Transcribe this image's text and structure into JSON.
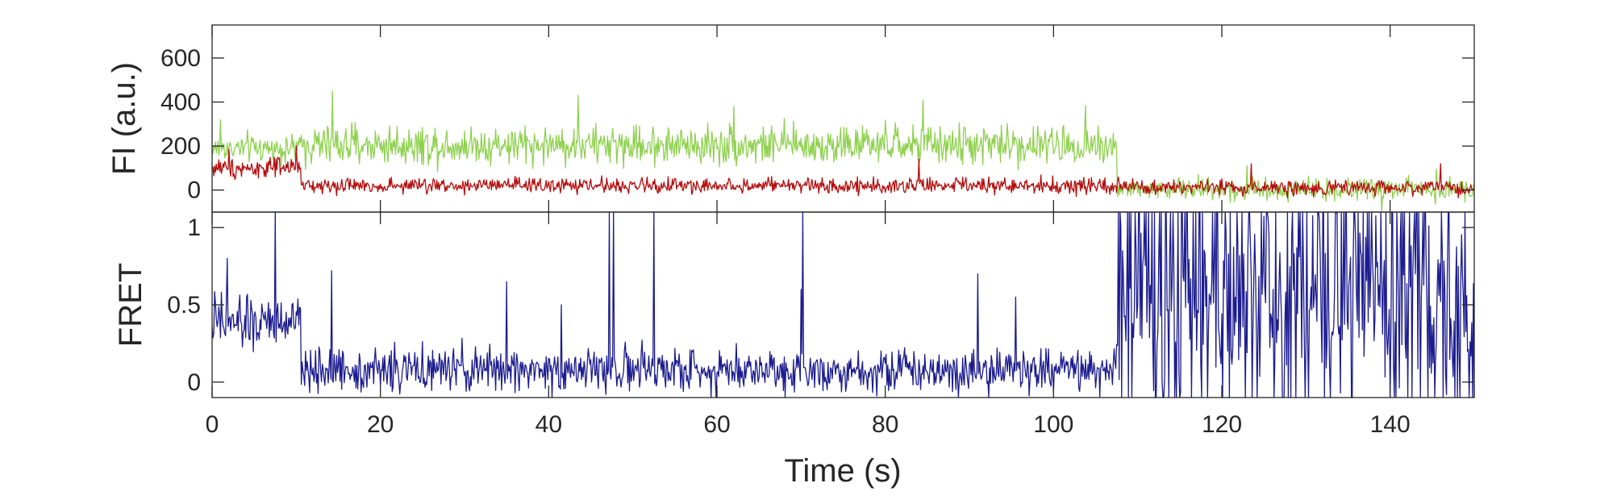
{
  "chart_data": [
    {
      "type": "line",
      "panel": "fluorescence",
      "ylabel": "FI (a.u.)",
      "xlabel": "",
      "xlim": [
        0,
        150
      ],
      "ylim": [
        -100,
        750
      ],
      "yticks": [
        0,
        200,
        400,
        600
      ],
      "ytick_labels": [
        "0",
        "200",
        "400",
        "600"
      ],
      "grid": false,
      "series": [
        {
          "color": "#8fd14f",
          "segments": [
            {
              "x0": 0,
              "x1": 10.5,
              "mean": 190,
              "noise": 55
            },
            {
              "x0": 10.5,
              "x1": 107.5,
              "mean": 205,
              "noise": 75
            },
            {
              "x0": 107.5,
              "x1": 150,
              "mean": 5,
              "noise": 45
            }
          ],
          "points": [
            {
              "x": 1.0,
              "y": 320
            },
            {
              "x": 14.3,
              "y": 450
            },
            {
              "x": 43.5,
              "y": 430
            },
            {
              "x": 62.0,
              "y": 380
            },
            {
              "x": 84.5,
              "y": 410
            },
            {
              "x": 103.8,
              "y": 385
            },
            {
              "x": 123.0,
              "y": 110
            },
            {
              "x": 145.5,
              "y": 95
            },
            {
              "x": 139.0,
              "y": -95
            }
          ]
        },
        {
          "color": "#b50d0d",
          "segments": [
            {
              "x0": 0,
              "x1": 10.5,
              "mean": 100,
              "noise": 38
            },
            {
              "x0": 10.5,
              "x1": 107.5,
              "mean": 20,
              "noise": 30
            },
            {
              "x0": 107.5,
              "x1": 150,
              "mean": 10,
              "noise": 30
            }
          ],
          "points": [
            {
              "x": 2.0,
              "y": 185
            },
            {
              "x": 10.0,
              "y": 200
            },
            {
              "x": 84.0,
              "y": 140
            },
            {
              "x": 123.5,
              "y": 120
            },
            {
              "x": 146.0,
              "y": 120
            }
          ]
        }
      ]
    },
    {
      "type": "line",
      "panel": "fret",
      "ylabel": "FRET",
      "xlabel": "Time (s)",
      "xlim": [
        0,
        150
      ],
      "ylim": [
        -0.1,
        1.1
      ],
      "yticks": [
        0,
        0.5,
        1
      ],
      "ytick_labels": [
        "0",
        "0.5",
        "1"
      ],
      "xticks": [
        0,
        20,
        40,
        60,
        80,
        100,
        120,
        140
      ],
      "xtick_labels": [
        "0",
        "20",
        "40",
        "60",
        "80",
        "100",
        "120",
        "140"
      ],
      "grid": false,
      "series": [
        {
          "color": "#1c1c8f",
          "segments": [
            {
              "x0": 0,
              "x1": 10.5,
              "mean": 0.38,
              "noise": 0.15
            },
            {
              "x0": 10.5,
              "x1": 107.5,
              "mean": 0.08,
              "noise": 0.12
            },
            {
              "x0": 107.5,
              "x1": 150,
              "mean": 0.5,
              "noise": 0.6
            }
          ],
          "spikes": [
            7.5,
            47.2,
            47.7,
            52.5,
            70.2
          ],
          "points": [
            {
              "x": 1.8,
              "y": 0.8
            },
            {
              "x": 14.2,
              "y": 0.72
            },
            {
              "x": 35.0,
              "y": 0.65
            },
            {
              "x": 41.5,
              "y": 0.5
            },
            {
              "x": 70.0,
              "y": 0.6
            },
            {
              "x": 91.0,
              "y": 0.7
            },
            {
              "x": 95.5,
              "y": 0.55
            }
          ]
        }
      ]
    }
  ]
}
